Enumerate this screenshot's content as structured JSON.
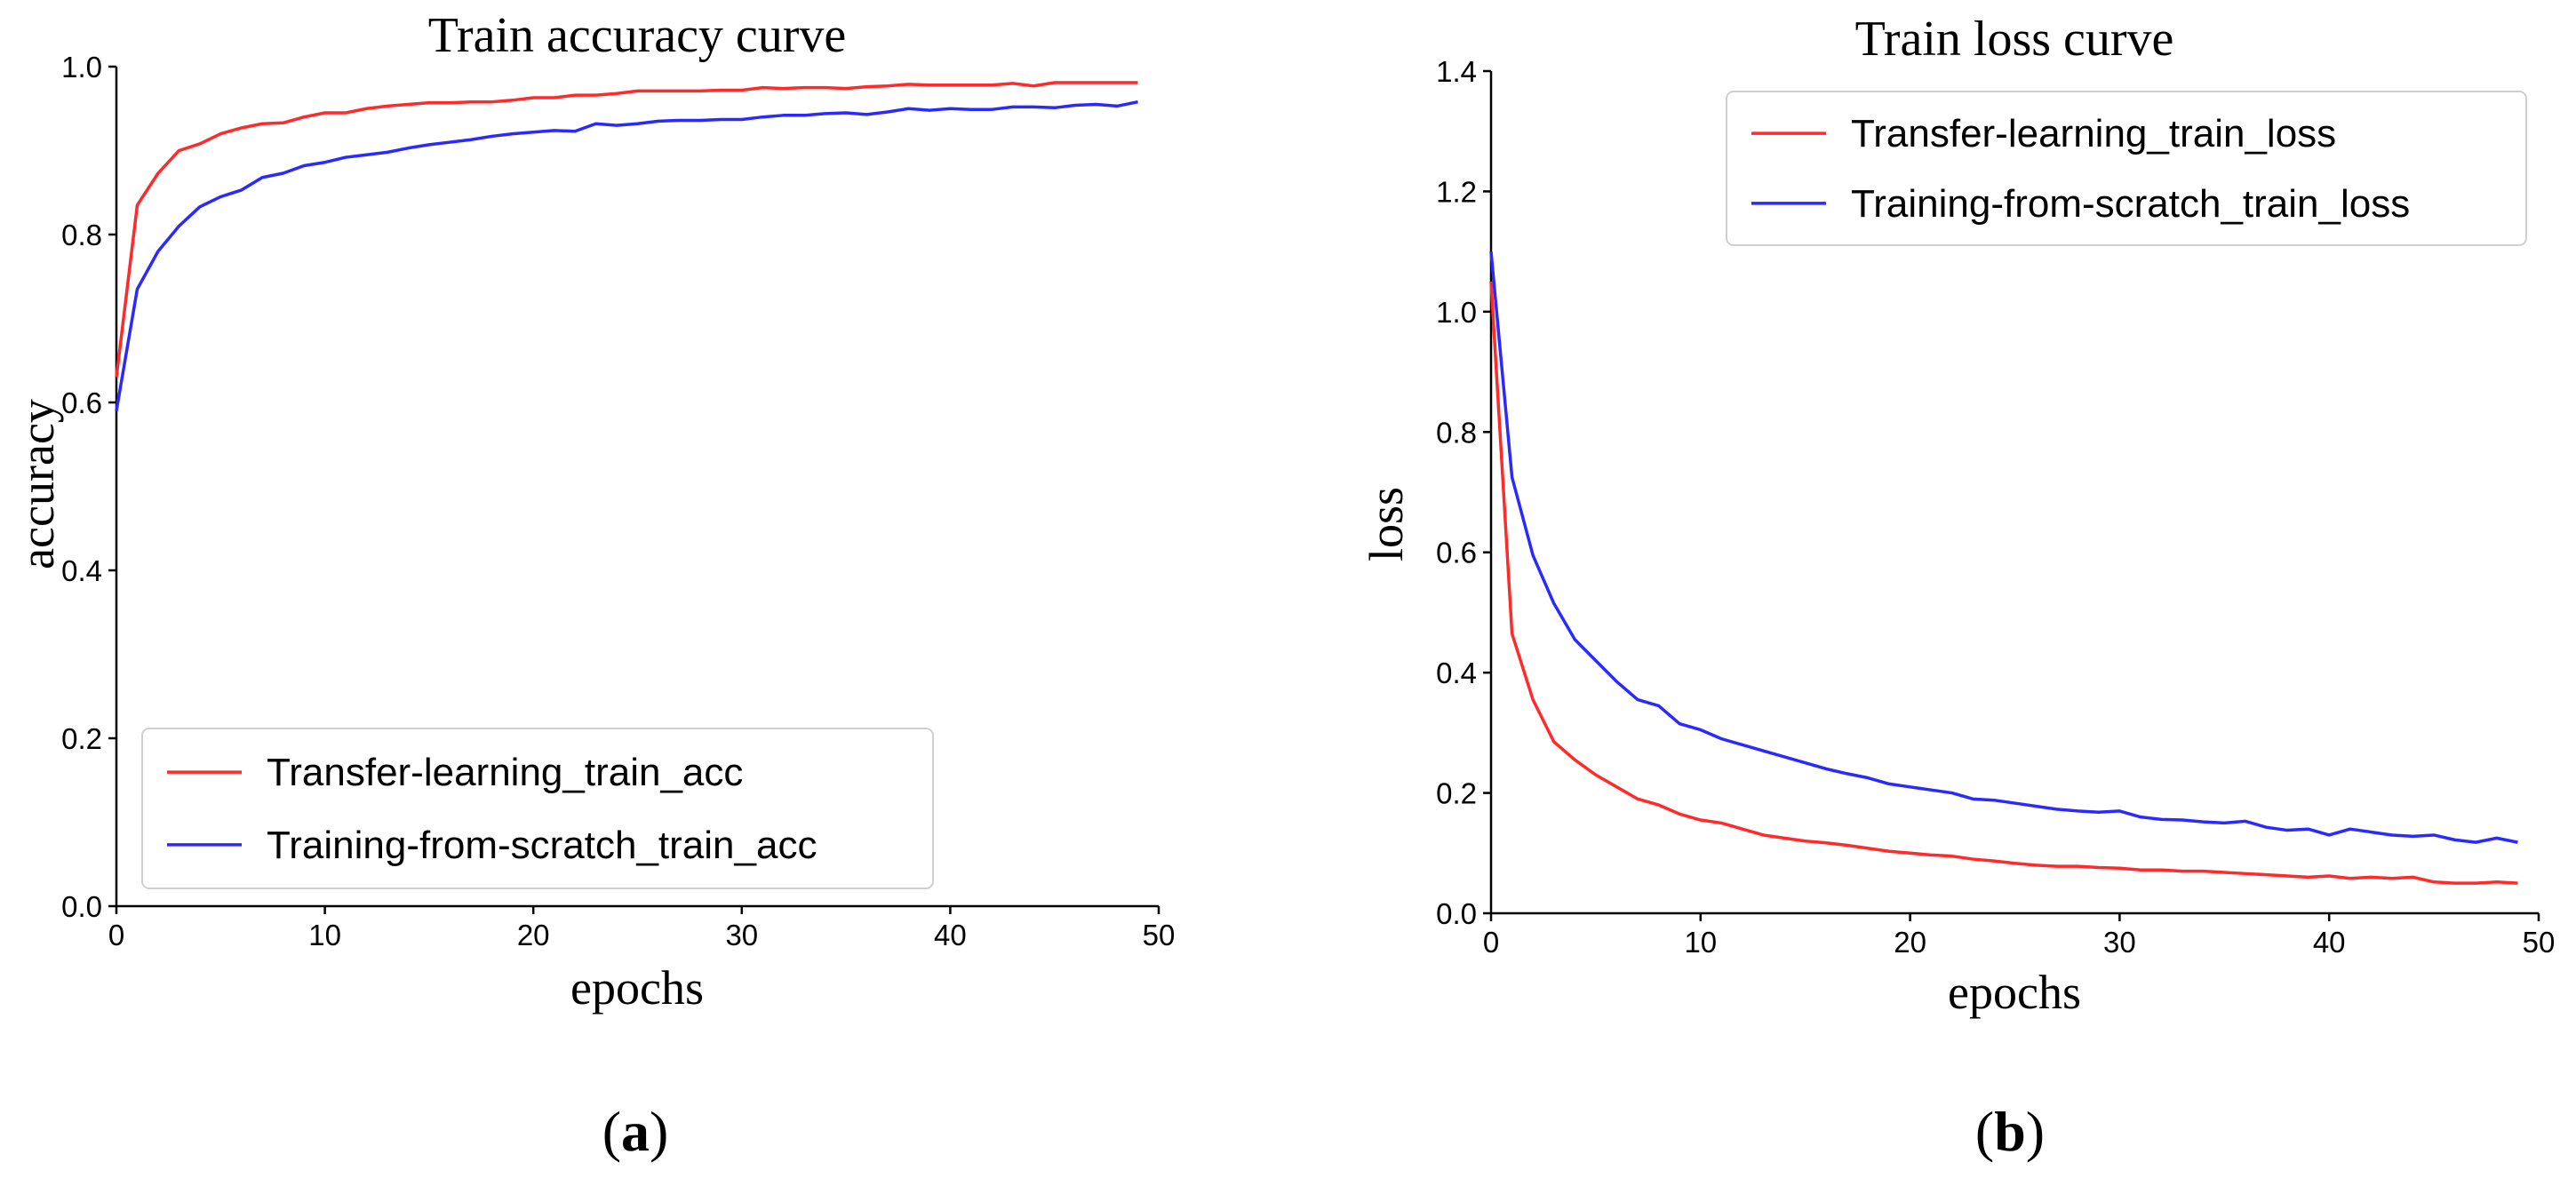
{
  "chart_data": [
    {
      "type": "line",
      "panel": "a",
      "title": "Train accuracy curve",
      "xlabel": "epochs",
      "ylabel": "accuracy",
      "xlim": [
        0,
        50
      ],
      "ylim": [
        0.0,
        1.0
      ],
      "xticks": [
        "0",
        "10",
        "20",
        "30",
        "40",
        "50"
      ],
      "yticks": [
        "0.0",
        "0.2",
        "0.4",
        "0.6",
        "0.8",
        "1.0"
      ],
      "grid": false,
      "legend_position": "lower-left",
      "series": [
        {
          "name": "Transfer-learning_train_acc",
          "color": "#ff2a2a",
          "x": [
            0,
            1,
            2,
            3,
            4,
            5,
            6,
            7,
            8,
            9,
            10,
            11,
            12,
            13,
            14,
            15,
            16,
            17,
            18,
            19,
            20,
            21,
            22,
            23,
            24,
            25,
            26,
            27,
            28,
            29,
            30,
            31,
            32,
            33,
            34,
            35,
            36,
            37,
            38,
            39,
            40,
            41,
            42,
            43,
            44,
            45,
            46,
            47,
            48,
            49
          ],
          "values": [
            0.63,
            0.835,
            0.873,
            0.9,
            0.908,
            0.92,
            0.927,
            0.932,
            0.933,
            0.94,
            0.945,
            0.945,
            0.95,
            0.953,
            0.955,
            0.957,
            0.957,
            0.958,
            0.958,
            0.96,
            0.963,
            0.963,
            0.966,
            0.966,
            0.968,
            0.971,
            0.971,
            0.971,
            0.971,
            0.972,
            0.972,
            0.975,
            0.974,
            0.975,
            0.975,
            0.974,
            0.976,
            0.977,
            0.979,
            0.978,
            0.978,
            0.978,
            0.978,
            0.98,
            0.977,
            0.981,
            0.981,
            0.981,
            0.981,
            0.981
          ]
        },
        {
          "name": "Training-from-scratch_train_acc",
          "color": "#2a2aff",
          "x": [
            0,
            1,
            2,
            3,
            4,
            5,
            6,
            7,
            8,
            9,
            10,
            11,
            12,
            13,
            14,
            15,
            16,
            17,
            18,
            19,
            20,
            21,
            22,
            23,
            24,
            25,
            26,
            27,
            28,
            29,
            30,
            31,
            32,
            33,
            34,
            35,
            36,
            37,
            38,
            39,
            40,
            41,
            42,
            43,
            44,
            45,
            46,
            47,
            48,
            49
          ],
          "values": [
            0.59,
            0.735,
            0.78,
            0.81,
            0.833,
            0.845,
            0.853,
            0.868,
            0.873,
            0.882,
            0.886,
            0.892,
            0.895,
            0.898,
            0.903,
            0.907,
            0.91,
            0.913,
            0.917,
            0.92,
            0.922,
            0.924,
            0.923,
            0.932,
            0.93,
            0.932,
            0.935,
            0.936,
            0.936,
            0.937,
            0.937,
            0.94,
            0.942,
            0.942,
            0.944,
            0.945,
            0.943,
            0.946,
            0.95,
            0.948,
            0.95,
            0.949,
            0.949,
            0.952,
            0.952,
            0.951,
            0.954,
            0.955,
            0.953,
            0.958
          ]
        }
      ]
    },
    {
      "type": "line",
      "panel": "b",
      "title": "Train loss curve",
      "xlabel": "epochs",
      "ylabel": "loss",
      "xlim": [
        0,
        50
      ],
      "ylim": [
        0.0,
        1.4
      ],
      "xticks": [
        "0",
        "10",
        "20",
        "30",
        "40",
        "50"
      ],
      "yticks": [
        "0.0",
        "0.2",
        "0.4",
        "0.6",
        "0.8",
        "1.0",
        "1.2",
        "1.4"
      ],
      "grid": false,
      "legend_position": "upper-right",
      "series": [
        {
          "name": "Transfer-learning_train_loss",
          "color": "#ff2a2a",
          "x": [
            0,
            1,
            2,
            3,
            4,
            5,
            6,
            7,
            8,
            9,
            10,
            11,
            12,
            13,
            14,
            15,
            16,
            17,
            18,
            19,
            20,
            21,
            22,
            23,
            24,
            25,
            26,
            27,
            28,
            29,
            30,
            31,
            32,
            33,
            34,
            35,
            36,
            37,
            38,
            39,
            40,
            41,
            42,
            43,
            44,
            45,
            46,
            47,
            48,
            49
          ],
          "values": [
            1.05,
            0.465,
            0.355,
            0.285,
            0.255,
            0.23,
            0.21,
            0.19,
            0.18,
            0.165,
            0.155,
            0.15,
            0.14,
            0.13,
            0.125,
            0.12,
            0.117,
            0.113,
            0.108,
            0.103,
            0.1,
            0.097,
            0.095,
            0.09,
            0.087,
            0.083,
            0.08,
            0.078,
            0.078,
            0.076,
            0.075,
            0.072,
            0.072,
            0.07,
            0.07,
            0.068,
            0.066,
            0.064,
            0.062,
            0.06,
            0.062,
            0.058,
            0.06,
            0.058,
            0.06,
            0.052,
            0.05,
            0.05,
            0.052,
            0.05
          ]
        },
        {
          "name": "Training-from-scratch_train_loss",
          "color": "#2a2aff",
          "x": [
            0,
            1,
            2,
            3,
            4,
            5,
            6,
            7,
            8,
            9,
            10,
            11,
            12,
            13,
            14,
            15,
            16,
            17,
            18,
            19,
            20,
            21,
            22,
            23,
            24,
            25,
            26,
            27,
            28,
            29,
            30,
            31,
            32,
            33,
            34,
            35,
            36,
            37,
            38,
            39,
            40,
            41,
            42,
            43,
            44,
            45,
            46,
            47,
            48,
            49
          ],
          "values": [
            1.1,
            0.725,
            0.595,
            0.515,
            0.455,
            0.42,
            0.385,
            0.355,
            0.345,
            0.315,
            0.305,
            0.29,
            0.28,
            0.27,
            0.26,
            0.25,
            0.24,
            0.232,
            0.225,
            0.215,
            0.21,
            0.205,
            0.2,
            0.19,
            0.188,
            0.183,
            0.178,
            0.173,
            0.17,
            0.168,
            0.17,
            0.16,
            0.156,
            0.155,
            0.152,
            0.15,
            0.153,
            0.143,
            0.138,
            0.14,
            0.13,
            0.14,
            0.135,
            0.13,
            0.128,
            0.13,
            0.122,
            0.118,
            0.125,
            0.118
          ]
        }
      ]
    }
  ],
  "panel_labels": [
    "a",
    "b"
  ]
}
